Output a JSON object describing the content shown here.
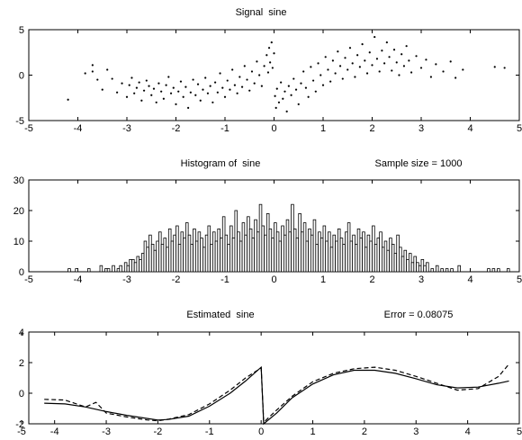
{
  "chart_data": [
    {
      "type": "scatter",
      "title": "Signal  sine",
      "xlim": [
        -5,
        5
      ],
      "ylim": [
        -5,
        5
      ],
      "xticks": [
        -5,
        -4,
        -3,
        -2,
        -1,
        0,
        1,
        2,
        3,
        4,
        5
      ],
      "yticks": [
        -5,
        0,
        5
      ],
      "grid": false,
      "legend": "none",
      "points": [
        [
          -4.2,
          -2.7
        ],
        [
          -3.85,
          0.2
        ],
        [
          -3.7,
          1.1
        ],
        [
          -3.7,
          0.4
        ],
        [
          -3.6,
          -0.5
        ],
        [
          -3.5,
          -1.6
        ],
        [
          -3.4,
          0.6
        ],
        [
          -3.3,
          -0.4
        ],
        [
          -3.2,
          -1.9
        ],
        [
          -3.1,
          -0.9
        ],
        [
          -3.0,
          -2.4
        ],
        [
          -2.95,
          -1.1
        ],
        [
          -2.9,
          -0.3
        ],
        [
          -2.85,
          -2.0
        ],
        [
          -2.8,
          -1.4
        ],
        [
          -2.75,
          -0.8
        ],
        [
          -2.7,
          -2.8
        ],
        [
          -2.65,
          -1.7
        ],
        [
          -2.6,
          -0.6
        ],
        [
          -2.55,
          -1.2
        ],
        [
          -2.5,
          -2.2
        ],
        [
          -2.45,
          -1.5
        ],
        [
          -2.4,
          -3.0
        ],
        [
          -2.35,
          -0.9
        ],
        [
          -2.3,
          -1.8
        ],
        [
          -2.25,
          -2.6
        ],
        [
          -2.2,
          -1.1
        ],
        [
          -2.15,
          -0.2
        ],
        [
          -2.1,
          -2.0
        ],
        [
          -2.05,
          -1.4
        ],
        [
          -2.0,
          -3.2
        ],
        [
          -1.95,
          -1.8
        ],
        [
          -1.9,
          -0.7
        ],
        [
          -1.85,
          -2.4
        ],
        [
          -1.8,
          -1.3
        ],
        [
          -1.75,
          -3.6
        ],
        [
          -1.7,
          -1.9
        ],
        [
          -1.65,
          -0.5
        ],
        [
          -1.6,
          -2.2
        ],
        [
          -1.55,
          -1.0
        ],
        [
          -1.5,
          -2.8
        ],
        [
          -1.45,
          -1.6
        ],
        [
          -1.4,
          -0.3
        ],
        [
          -1.35,
          -2.0
        ],
        [
          -1.3,
          -1.2
        ],
        [
          -1.25,
          -3.0
        ],
        [
          -1.2,
          -0.8
        ],
        [
          -1.15,
          -1.9
        ],
        [
          -1.1,
          0.2
        ],
        [
          -1.05,
          -1.4
        ],
        [
          -1.0,
          -2.4
        ],
        [
          -0.95,
          -0.6
        ],
        [
          -0.9,
          -1.6
        ],
        [
          -0.85,
          0.6
        ],
        [
          -0.8,
          -1.1
        ],
        [
          -0.75,
          -2.0
        ],
        [
          -0.7,
          -0.2
        ],
        [
          -0.65,
          -1.3
        ],
        [
          -0.6,
          1.0
        ],
        [
          -0.55,
          -0.5
        ],
        [
          -0.5,
          -1.7
        ],
        [
          -0.45,
          0.4
        ],
        [
          -0.4,
          -0.9
        ],
        [
          -0.35,
          1.5
        ],
        [
          -0.3,
          0.0
        ],
        [
          -0.25,
          -1.2
        ],
        [
          -0.2,
          1.0
        ],
        [
          -0.15,
          2.2
        ],
        [
          -0.12,
          0.3
        ],
        [
          -0.1,
          3.0
        ],
        [
          -0.08,
          1.4
        ],
        [
          -0.05,
          3.6
        ],
        [
          -0.03,
          0.8
        ],
        [
          0.0,
          2.4
        ],
        [
          0.02,
          -2.3
        ],
        [
          0.04,
          -3.6
        ],
        [
          0.06,
          -1.5
        ],
        [
          0.1,
          -3.0
        ],
        [
          0.14,
          -0.8
        ],
        [
          0.18,
          -2.6
        ],
        [
          0.22,
          -1.8
        ],
        [
          0.26,
          -4.0
        ],
        [
          0.3,
          -1.2
        ],
        [
          0.35,
          -2.2
        ],
        [
          0.4,
          -0.4
        ],
        [
          0.45,
          -1.6
        ],
        [
          0.5,
          -3.2
        ],
        [
          0.55,
          -0.9
        ],
        [
          0.6,
          0.4
        ],
        [
          0.65,
          -1.4
        ],
        [
          0.7,
          -2.4
        ],
        [
          0.75,
          0.9
        ],
        [
          0.8,
          -0.6
        ],
        [
          0.85,
          -1.8
        ],
        [
          0.9,
          1.3
        ],
        [
          0.95,
          0.0
        ],
        [
          1.0,
          -1.1
        ],
        [
          1.05,
          2.0
        ],
        [
          1.1,
          0.6
        ],
        [
          1.15,
          -0.7
        ],
        [
          1.2,
          1.6
        ],
        [
          1.25,
          0.2
        ],
        [
          1.3,
          2.6
        ],
        [
          1.35,
          1.0
        ],
        [
          1.4,
          -0.4
        ],
        [
          1.45,
          1.9
        ],
        [
          1.5,
          0.6
        ],
        [
          1.55,
          3.0
        ],
        [
          1.6,
          1.3
        ],
        [
          1.65,
          -0.2
        ],
        [
          1.7,
          2.2
        ],
        [
          1.75,
          0.9
        ],
        [
          1.8,
          3.4
        ],
        [
          1.85,
          1.6
        ],
        [
          1.9,
          0.2
        ],
        [
          1.95,
          2.5
        ],
        [
          2.0,
          1.1
        ],
        [
          2.05,
          4.2
        ],
        [
          2.1,
          1.8
        ],
        [
          2.15,
          0.4
        ],
        [
          2.2,
          2.7
        ],
        [
          2.25,
          1.3
        ],
        [
          2.3,
          3.6
        ],
        [
          2.35,
          2.0
        ],
        [
          2.4,
          0.5
        ],
        [
          2.45,
          2.8
        ],
        [
          2.5,
          1.4
        ],
        [
          2.55,
          0.0
        ],
        [
          2.6,
          2.3
        ],
        [
          2.65,
          1.0
        ],
        [
          2.7,
          3.2
        ],
        [
          2.75,
          1.6
        ],
        [
          2.8,
          0.3
        ],
        [
          2.9,
          2.1
        ],
        [
          3.0,
          0.8
        ],
        [
          3.1,
          1.7
        ],
        [
          3.2,
          -0.2
        ],
        [
          3.3,
          1.2
        ],
        [
          3.45,
          0.4
        ],
        [
          3.6,
          1.5
        ],
        [
          3.7,
          -0.3
        ],
        [
          3.85,
          0.6
        ],
        [
          4.5,
          0.9
        ],
        [
          4.7,
          0.8
        ]
      ]
    },
    {
      "type": "bar",
      "title": "Histogram of  sine",
      "subtitle": "Sample size = 1000",
      "xlim": [
        -5,
        5
      ],
      "ylim": [
        0,
        30
      ],
      "xticks": [
        -5,
        -4,
        -3,
        -2,
        -1,
        0,
        1,
        2,
        3,
        4,
        5
      ],
      "yticks": [
        0,
        10,
        20,
        30
      ],
      "grid": false,
      "legend": "none",
      "bin_width": 0.05,
      "bins": [
        [
          -4.2,
          1
        ],
        [
          -4.05,
          1
        ],
        [
          -3.8,
          1
        ],
        [
          -3.55,
          2
        ],
        [
          -3.45,
          1
        ],
        [
          -3.4,
          1
        ],
        [
          -3.3,
          2
        ],
        [
          -3.2,
          1
        ],
        [
          -3.15,
          2
        ],
        [
          -3.05,
          3
        ],
        [
          -3.0,
          2
        ],
        [
          -2.95,
          4
        ],
        [
          -2.9,
          4
        ],
        [
          -2.85,
          3
        ],
        [
          -2.8,
          5
        ],
        [
          -2.75,
          4
        ],
        [
          -2.7,
          6
        ],
        [
          -2.65,
          10
        ],
        [
          -2.6,
          8
        ],
        [
          -2.55,
          12
        ],
        [
          -2.5,
          9
        ],
        [
          -2.45,
          7
        ],
        [
          -2.4,
          10
        ],
        [
          -2.35,
          13
        ],
        [
          -2.3,
          9
        ],
        [
          -2.25,
          11
        ],
        [
          -2.2,
          8
        ],
        [
          -2.15,
          14
        ],
        [
          -2.1,
          10
        ],
        [
          -2.05,
          12
        ],
        [
          -2.0,
          15
        ],
        [
          -1.95,
          9
        ],
        [
          -1.9,
          13
        ],
        [
          -1.85,
          11
        ],
        [
          -1.8,
          16
        ],
        [
          -1.75,
          12
        ],
        [
          -1.7,
          9
        ],
        [
          -1.65,
          14
        ],
        [
          -1.6,
          10
        ],
        [
          -1.55,
          13
        ],
        [
          -1.5,
          11
        ],
        [
          -1.45,
          8
        ],
        [
          -1.4,
          12
        ],
        [
          -1.35,
          15
        ],
        [
          -1.3,
          9
        ],
        [
          -1.25,
          13
        ],
        [
          -1.2,
          10
        ],
        [
          -1.15,
          14
        ],
        [
          -1.1,
          11
        ],
        [
          -1.05,
          18
        ],
        [
          -1.0,
          12
        ],
        [
          -0.95,
          9
        ],
        [
          -0.9,
          15
        ],
        [
          -0.85,
          11
        ],
        [
          -0.8,
          20
        ],
        [
          -0.75,
          13
        ],
        [
          -0.7,
          10
        ],
        [
          -0.65,
          16
        ],
        [
          -0.6,
          12
        ],
        [
          -0.55,
          18
        ],
        [
          -0.5,
          14
        ],
        [
          -0.45,
          11
        ],
        [
          -0.4,
          17
        ],
        [
          -0.35,
          13
        ],
        [
          -0.3,
          22
        ],
        [
          -0.25,
          15
        ],
        [
          -0.2,
          12
        ],
        [
          -0.15,
          19
        ],
        [
          -0.1,
          14
        ],
        [
          -0.05,
          11
        ],
        [
          0.0,
          16
        ],
        [
          0.05,
          13
        ],
        [
          0.1,
          10
        ],
        [
          0.15,
          15
        ],
        [
          0.2,
          12
        ],
        [
          0.25,
          17
        ],
        [
          0.3,
          13
        ],
        [
          0.35,
          22
        ],
        [
          0.4,
          14
        ],
        [
          0.45,
          11
        ],
        [
          0.5,
          19
        ],
        [
          0.55,
          13
        ],
        [
          0.6,
          16
        ],
        [
          0.65,
          10
        ],
        [
          0.7,
          14
        ],
        [
          0.75,
          12
        ],
        [
          0.8,
          17
        ],
        [
          0.85,
          9
        ],
        [
          0.9,
          13
        ],
        [
          0.95,
          11
        ],
        [
          1.0,
          15
        ],
        [
          1.05,
          10
        ],
        [
          1.1,
          13
        ],
        [
          1.15,
          8
        ],
        [
          1.2,
          12
        ],
        [
          1.25,
          10
        ],
        [
          1.3,
          14
        ],
        [
          1.35,
          11
        ],
        [
          1.4,
          9
        ],
        [
          1.45,
          13
        ],
        [
          1.5,
          16
        ],
        [
          1.55,
          10
        ],
        [
          1.6,
          12
        ],
        [
          1.65,
          9
        ],
        [
          1.7,
          14
        ],
        [
          1.75,
          11
        ],
        [
          1.8,
          13
        ],
        [
          1.85,
          8
        ],
        [
          1.9,
          12
        ],
        [
          1.95,
          10
        ],
        [
          2.0,
          15
        ],
        [
          2.05,
          9
        ],
        [
          2.1,
          11
        ],
        [
          2.15,
          13
        ],
        [
          2.2,
          8
        ],
        [
          2.25,
          10
        ],
        [
          2.3,
          7
        ],
        [
          2.35,
          11
        ],
        [
          2.4,
          9
        ],
        [
          2.45,
          6
        ],
        [
          2.5,
          12
        ],
        [
          2.55,
          8
        ],
        [
          2.6,
          5
        ],
        [
          2.65,
          7
        ],
        [
          2.7,
          4
        ],
        [
          2.75,
          6
        ],
        [
          2.8,
          3
        ],
        [
          2.85,
          5
        ],
        [
          2.9,
          3
        ],
        [
          2.95,
          2
        ],
        [
          3.0,
          4
        ],
        [
          3.05,
          2
        ],
        [
          3.1,
          3
        ],
        [
          3.2,
          1
        ],
        [
          3.3,
          2
        ],
        [
          3.4,
          1
        ],
        [
          3.5,
          1
        ],
        [
          3.6,
          1
        ],
        [
          3.75,
          2
        ],
        [
          4.35,
          1
        ],
        [
          4.45,
          1
        ],
        [
          4.55,
          1
        ],
        [
          4.75,
          1
        ]
      ]
    },
    {
      "type": "line",
      "title": "Estimated  sine",
      "subtitle": "Error = 0.08075",
      "xlim": [
        -4.5,
        5
      ],
      "ylim": [
        -2,
        4
      ],
      "xticks": [
        -5,
        -4,
        -3,
        -2,
        -1,
        0,
        1,
        2,
        3,
        4,
        5
      ],
      "yticks": [
        -2,
        0,
        2,
        4
      ],
      "grid": false,
      "legend": "none",
      "series": [
        {
          "style": "solid",
          "points": [
            [
              -4.2,
              -0.65
            ],
            [
              -3.8,
              -0.7
            ],
            [
              -3.4,
              -0.9
            ],
            [
              -3.0,
              -1.2
            ],
            [
              -2.6,
              -1.45
            ],
            [
              -2.2,
              -1.65
            ],
            [
              -2.0,
              -1.75
            ],
            [
              -1.8,
              -1.72
            ],
            [
              -1.4,
              -1.5
            ],
            [
              -1.0,
              -0.85
            ],
            [
              -0.6,
              0.0
            ],
            [
              -0.3,
              0.8
            ],
            [
              0.0,
              1.7
            ],
            [
              0.05,
              -2.0
            ],
            [
              0.3,
              -1.3
            ],
            [
              0.6,
              -0.3
            ],
            [
              1.0,
              0.6
            ],
            [
              1.4,
              1.2
            ],
            [
              1.8,
              1.5
            ],
            [
              2.2,
              1.5
            ],
            [
              2.6,
              1.3
            ],
            [
              3.0,
              0.95
            ],
            [
              3.4,
              0.55
            ],
            [
              3.8,
              0.35
            ],
            [
              4.2,
              0.4
            ],
            [
              4.6,
              0.65
            ],
            [
              4.8,
              0.8
            ]
          ]
        },
        {
          "style": "dashed",
          "points": [
            [
              -4.2,
              -0.4
            ],
            [
              -3.8,
              -0.45
            ],
            [
              -3.4,
              -0.9
            ],
            [
              -3.2,
              -0.6
            ],
            [
              -3.0,
              -1.3
            ],
            [
              -2.6,
              -1.55
            ],
            [
              -2.2,
              -1.75
            ],
            [
              -2.0,
              -1.8
            ],
            [
              -1.8,
              -1.7
            ],
            [
              -1.4,
              -1.4
            ],
            [
              -1.0,
              -0.7
            ],
            [
              -0.6,
              0.2
            ],
            [
              -0.3,
              1.0
            ],
            [
              0.0,
              1.65
            ],
            [
              0.05,
              -1.9
            ],
            [
              0.3,
              -1.1
            ],
            [
              0.6,
              -0.2
            ],
            [
              1.0,
              0.75
            ],
            [
              1.4,
              1.3
            ],
            [
              1.8,
              1.6
            ],
            [
              2.2,
              1.7
            ],
            [
              2.6,
              1.5
            ],
            [
              3.0,
              1.1
            ],
            [
              3.4,
              0.65
            ],
            [
              3.8,
              0.2
            ],
            [
              4.2,
              0.3
            ],
            [
              4.6,
              1.1
            ],
            [
              4.8,
              1.9
            ]
          ]
        }
      ]
    }
  ]
}
